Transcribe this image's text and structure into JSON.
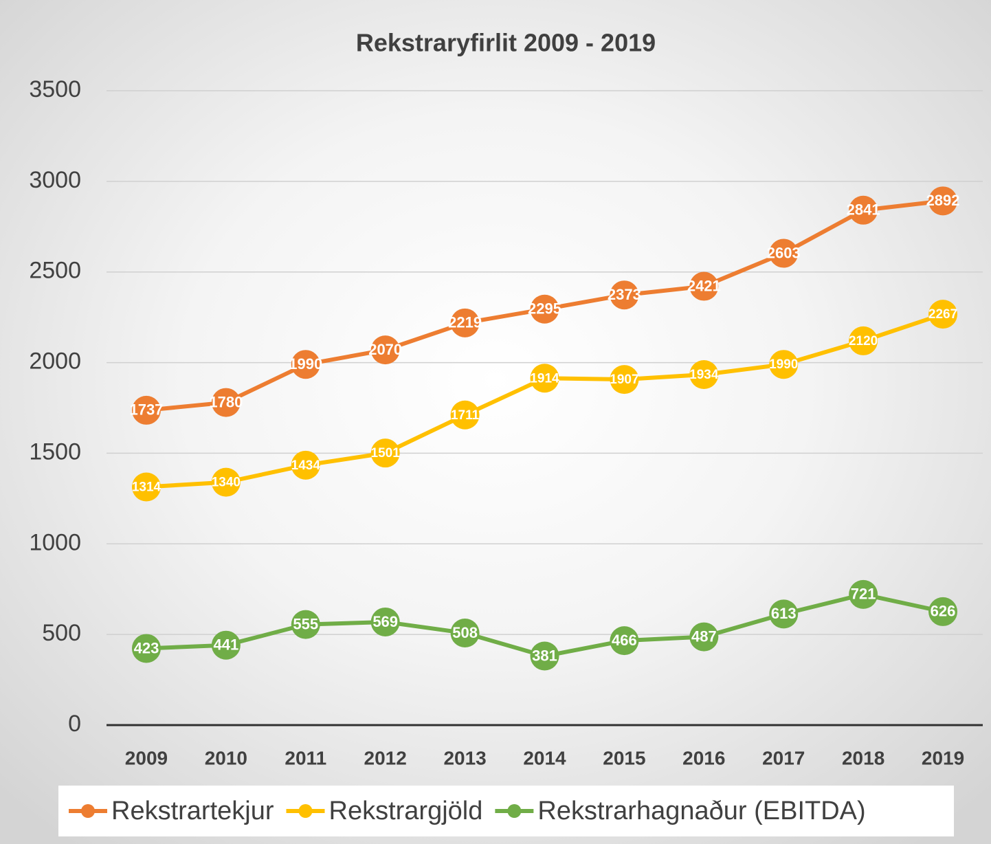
{
  "chart_data": {
    "type": "line",
    "title": "Rekstraryfirlit  2009 - 2019",
    "categories": [
      "2009",
      "2010",
      "2011",
      "2012",
      "2013",
      "2014",
      "2015",
      "2016",
      "2017",
      "2018",
      "2019"
    ],
    "series": [
      {
        "name": "Rekstrartekjur",
        "color": "#ED7D31",
        "values": [
          1737,
          1780,
          1990,
          2070,
          2219,
          2295,
          2373,
          2421,
          2603,
          2841,
          2892
        ]
      },
      {
        "name": "Rekstrargjöld",
        "color": "#FFC000",
        "values": [
          1314,
          1340,
          1434,
          1501,
          1711,
          1914,
          1907,
          1934,
          1990,
          2120,
          2267
        ]
      },
      {
        "name": "Rekstrarhagnaður (EBITDA)",
        "color": "#70AD47",
        "values": [
          423,
          441,
          555,
          569,
          508,
          381,
          466,
          487,
          613,
          721,
          626
        ]
      }
    ],
    "ylim": [
      0,
      3500
    ],
    "yticks": [
      0,
      500,
      1000,
      1500,
      2000,
      2500,
      3000,
      3500
    ],
    "grid": true,
    "legend": "bottom"
  }
}
